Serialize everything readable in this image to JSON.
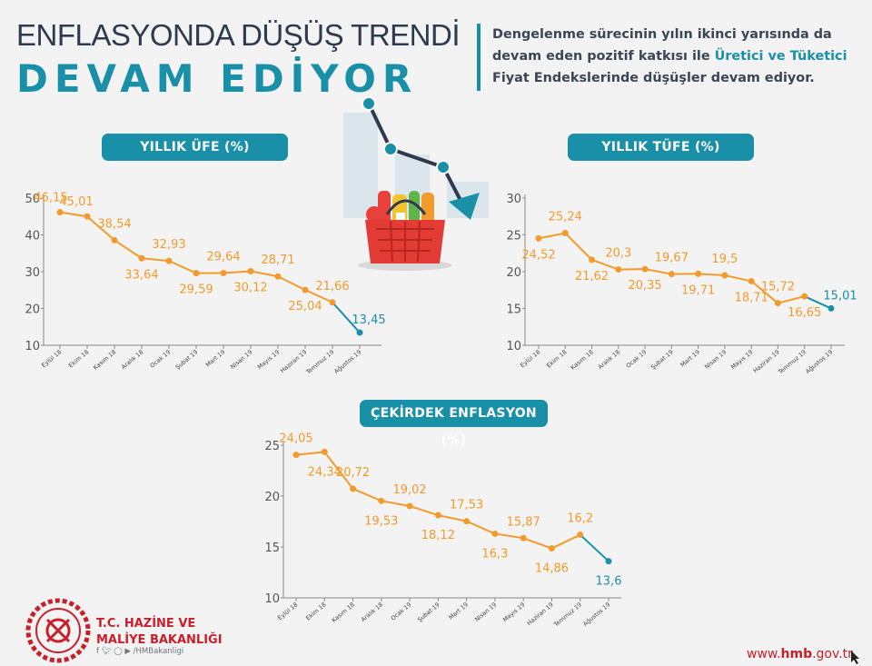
{
  "header": {
    "title_line1": "ENFLASYONDA DÜŞÜŞ TRENDİ",
    "title_line2": "DEVAM EDİYOR",
    "subtitle_part1": "Dengelenme sürecinin yılın ikinci yarısında da devam eden pozitif katkısı ile ",
    "subtitle_highlight": "Üretici ve Tüketici",
    "subtitle_part2": " Fiyat Endekslerinde düşüşler devam ediyor."
  },
  "footer": {
    "org_line1": "T.C. HAZİNE VE",
    "org_line2": "MALİYE BAKANLIĞI",
    "social_handle": "/HMBakanligi",
    "url_prefix": "www.",
    "url_bold": "hmb",
    "url_suffix": ".gov.tr"
  },
  "colors": {
    "orange": "#f39a2c",
    "teal": "#1a8fa8",
    "title_dark": "#2e3a4e",
    "red": "#c8202a"
  },
  "icons": [
    "falling-trend-arrow-icon",
    "shopping-basket-icon",
    "ministry-seal-icon",
    "facebook-icon",
    "twitter-icon",
    "instagram-icon",
    "youtube-icon",
    "cursor-icon"
  ],
  "chart_data": [
    {
      "type": "line",
      "title": "YILLIK ÜFE (%)",
      "categories": [
        "Eylül 18",
        "Ekim 18",
        "Kasım 18",
        "Aralık 18",
        "Ocak 19",
        "Şubat 19",
        "Mart 19",
        "Nisan 19",
        "Mayıs 19",
        "Haziran 19",
        "Temmuz 19",
        "Ağustos 19"
      ],
      "values": [
        46.15,
        45.01,
        38.54,
        33.64,
        32.93,
        29.59,
        29.64,
        30.12,
        28.71,
        25.04,
        21.66,
        13.45
      ],
      "labels": [
        "46,15",
        "45,01",
        "38,54",
        "33,64",
        "32,93",
        "29,59",
        "29,64",
        "30,12",
        "28,71",
        "25,04",
        "21,66",
        "13,45"
      ],
      "yticks": [
        "10",
        "20",
        "30",
        "40",
        "50"
      ],
      "ylim": [
        10,
        50
      ],
      "last_point_highlighted": true
    },
    {
      "type": "line",
      "title": "YILLIK TÜFE (%)",
      "categories": [
        "Eylül 18",
        "Ekim 18",
        "Kasım 18",
        "Aralık 18",
        "Ocak 19",
        "Şubat 19",
        "Mart 19",
        "Nisan 19",
        "Mayıs 19",
        "Haziran 19",
        "Temmuz 19",
        "Ağustos 19"
      ],
      "values": [
        24.52,
        25.24,
        21.62,
        20.3,
        20.35,
        19.67,
        19.71,
        19.5,
        18.71,
        15.72,
        16.65,
        15.01
      ],
      "labels": [
        "24,52",
        "25,24",
        "21,62",
        "20,3",
        "20,35",
        "19,67",
        "19,71",
        "19,5",
        "18,71",
        "15,72",
        "16,65",
        "15,01"
      ],
      "yticks": [
        "10",
        "15",
        "20",
        "25",
        "30"
      ],
      "ylim": [
        10,
        30
      ],
      "last_point_highlighted": true
    },
    {
      "type": "line",
      "title": "ÇEKİRDEK ENFLASYON (%)",
      "categories": [
        "Eylül 18",
        "Ekim 18",
        "Kasım 18",
        "Aralık 18",
        "Ocak 19",
        "Şubat 19",
        "Mart 19",
        "Nisan 19",
        "Mayıs 19",
        "Haziran 19",
        "Temmuz 19",
        "Ağustos 19"
      ],
      "values": [
        24.05,
        24.34,
        20.72,
        19.53,
        19.02,
        18.12,
        17.53,
        16.3,
        15.87,
        14.86,
        16.2,
        13.6
      ],
      "labels": [
        "24,05",
        "24,34",
        "20,72",
        "19,53",
        "19,02",
        "18,12",
        "17,53",
        "16,3",
        "15,87",
        "14,86",
        "16,2",
        "13,6"
      ],
      "yticks": [
        "10",
        "15",
        "20",
        "25"
      ],
      "ylim": [
        10,
        25
      ],
      "last_point_highlighted": true
    }
  ]
}
